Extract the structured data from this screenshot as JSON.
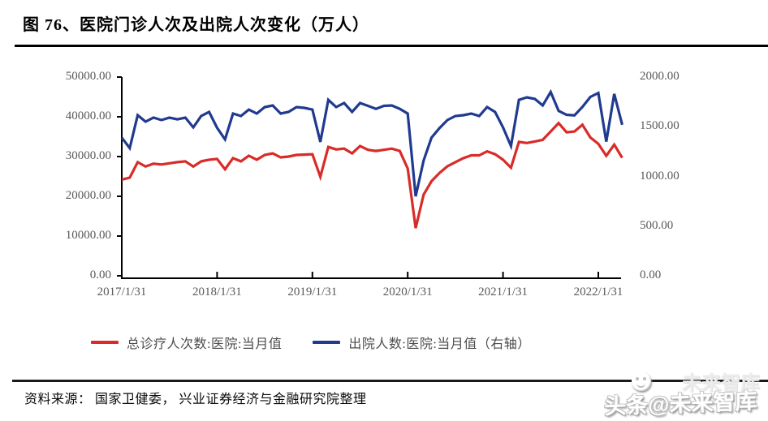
{
  "page": {
    "title_label": "图 76、医院门诊人次及出院人次变化（万人）",
    "source_label": "资料来源： 国家卫健委， 兴业证券经济与金融研究院整理",
    "watermark_main": "头条@未来智库",
    "watermark_ghost": "未来智库"
  },
  "colors": {
    "series_outpatient": "#d92b27",
    "series_discharge": "#203a8f",
    "axis_text": "#595959",
    "axis_line": "#000000"
  },
  "chart_data": {
    "type": "line",
    "title": "医院门诊人次及出院人次变化（万人）",
    "grid": false,
    "legend_position": "bottom",
    "x_unit": "month",
    "x_range_start": "2017-01",
    "x_range_end": "2022-04",
    "n_points": 64,
    "x_tick_labels": [
      "2017/1/31",
      "2018/1/31",
      "2019/1/31",
      "2020/1/31",
      "2021/1/31",
      "2022/1/31"
    ],
    "x_tick_point_indices": [
      0,
      12,
      24,
      36,
      48,
      60
    ],
    "left_axis": {
      "min": 0,
      "max": 50000,
      "tick_labels": [
        "50000.00",
        "40000.00",
        "30000.00",
        "20000.00",
        "10000.00",
        "0.00"
      ]
    },
    "right_axis": {
      "min": 0,
      "max": 2000,
      "tick_labels": [
        "2000.00",
        "1500.00",
        "1000.00",
        "500.00",
        "0.00"
      ]
    },
    "series": [
      {
        "name": "总诊疗人次数:医院:当月值",
        "axis": "left",
        "color": "#d92b27",
        "values": [
          24200,
          24700,
          28600,
          27500,
          28200,
          28000,
          28300,
          28600,
          28800,
          27500,
          28800,
          29200,
          29400,
          26800,
          29600,
          28800,
          30200,
          29200,
          30400,
          30800,
          29800,
          30000,
          30400,
          30500,
          30600,
          24900,
          32400,
          31800,
          32000,
          30800,
          32650,
          31700,
          31400,
          31700,
          32000,
          31400,
          27000,
          12000,
          20400,
          23800,
          25850,
          27550,
          28600,
          29600,
          30300,
          30300,
          31300,
          30600,
          29200,
          27200,
          33700,
          33400,
          33800,
          34200,
          36300,
          38400,
          36100,
          36300,
          38000,
          34800,
          33200,
          30200,
          33000,
          29700
        ]
      },
      {
        "name": "出院人数:医院:当月值（右轴）",
        "axis": "right",
        "color": "#203a8f",
        "values": [
          1390,
          1285,
          1616,
          1551,
          1592,
          1567,
          1592,
          1575,
          1592,
          1494,
          1608,
          1649,
          1490,
          1372,
          1633,
          1608,
          1673,
          1633,
          1698,
          1714,
          1633,
          1649,
          1698,
          1690,
          1673,
          1347,
          1771,
          1698,
          1739,
          1649,
          1739,
          1710,
          1680,
          1710,
          1714,
          1680,
          1633,
          800,
          1160,
          1390,
          1486,
          1567,
          1608,
          1616,
          1633,
          1608,
          1698,
          1649,
          1494,
          1306,
          1771,
          1796,
          1780,
          1714,
          1850,
          1660,
          1620,
          1615,
          1700,
          1800,
          1840,
          1350,
          1830,
          1520
        ]
      }
    ]
  }
}
